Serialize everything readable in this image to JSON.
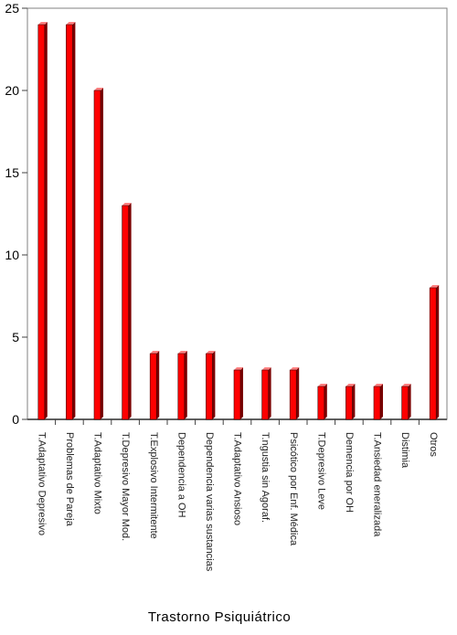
{
  "chart_data": {
    "type": "bar",
    "title": "",
    "xlabel": "Trastorno Psiquiátrico",
    "ylabel": "",
    "ylim": [
      0,
      25
    ],
    "yticks": [
      0,
      5,
      10,
      15,
      20,
      25
    ],
    "grid": false,
    "categories": [
      "T.Adaptativo Depresivo",
      "Problemas de Pareja",
      "T.Adaptativo Mixto",
      "T.Depresivo Mayor Mod.",
      "T.Explosivo Intermitente",
      "Dependencia a OH",
      "Dependencia varias sustancias",
      "T.Adaptativo Ansioso",
      "T.ngustia sin Agoraf.",
      "Psicótico por Enf. Médica",
      "T.Depresivo Leve",
      "Demencia por OH",
      "T.Ansiedad eneralizada",
      "Distimia",
      "Otros"
    ],
    "values": [
      24,
      24,
      20,
      13,
      4,
      4,
      4,
      3,
      3,
      3,
      2,
      2,
      2,
      2,
      8
    ],
    "bar_color": "#ff0000",
    "bar_side_color": "#7a0000",
    "bar_top_color": "#ff8080"
  }
}
